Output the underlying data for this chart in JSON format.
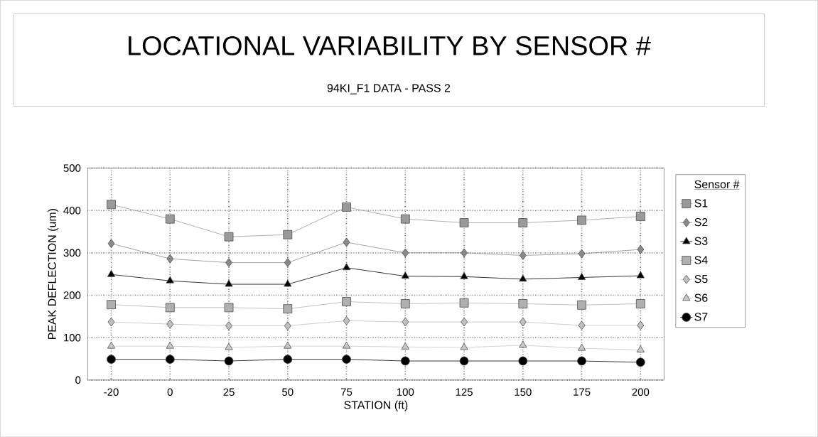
{
  "chart_data": {
    "type": "line",
    "title": "LOCATIONAL VARIABILITY BY SENSOR #",
    "subtitle": "94KI_F1 DATA - PASS 2",
    "xlabel": "STATION (ft)",
    "ylabel": "PEAK DEFLECTION (um)",
    "legend_title": "Sensor #",
    "categories": [
      "-20",
      "0",
      "25",
      "50",
      "75",
      "100",
      "125",
      "150",
      "175",
      "200"
    ],
    "ylim": [
      0,
      500
    ],
    "yticks": [
      0,
      100,
      200,
      300,
      400,
      500
    ],
    "grid": true,
    "legend": "right",
    "line_style": "solid",
    "series": [
      {
        "name": "S1",
        "color": "#9a9a9a",
        "marker": "square",
        "values": [
          414,
          380,
          338,
          343,
          408,
          380,
          371,
          371,
          377,
          386
        ]
      },
      {
        "name": "S2",
        "color": "#8a8a8a",
        "marker": "diamond",
        "values": [
          322,
          286,
          277,
          277,
          325,
          300,
          300,
          294,
          298,
          308
        ]
      },
      {
        "name": "S3",
        "color": "#000000",
        "marker": "triangle",
        "values": [
          249,
          234,
          226,
          226,
          265,
          245,
          244,
          238,
          242,
          246
        ]
      },
      {
        "name": "S4",
        "color": "#b0b0b0",
        "marker": "square",
        "values": [
          178,
          171,
          171,
          168,
          185,
          180,
          182,
          180,
          177,
          180
        ]
      },
      {
        "name": "S5",
        "color": "#c0c0c0",
        "marker": "diamond",
        "values": [
          137,
          132,
          128,
          128,
          140,
          137,
          137,
          137,
          129,
          129
        ]
      },
      {
        "name": "S6",
        "color": "#c8c8c8",
        "marker": "triangle",
        "values": [
          80,
          80,
          77,
          80,
          80,
          78,
          77,
          82,
          75,
          71
        ]
      },
      {
        "name": "S7",
        "color": "#000000",
        "marker": "circle",
        "values": [
          49,
          49,
          45,
          49,
          49,
          45,
          45,
          45,
          45,
          42
        ]
      }
    ]
  }
}
